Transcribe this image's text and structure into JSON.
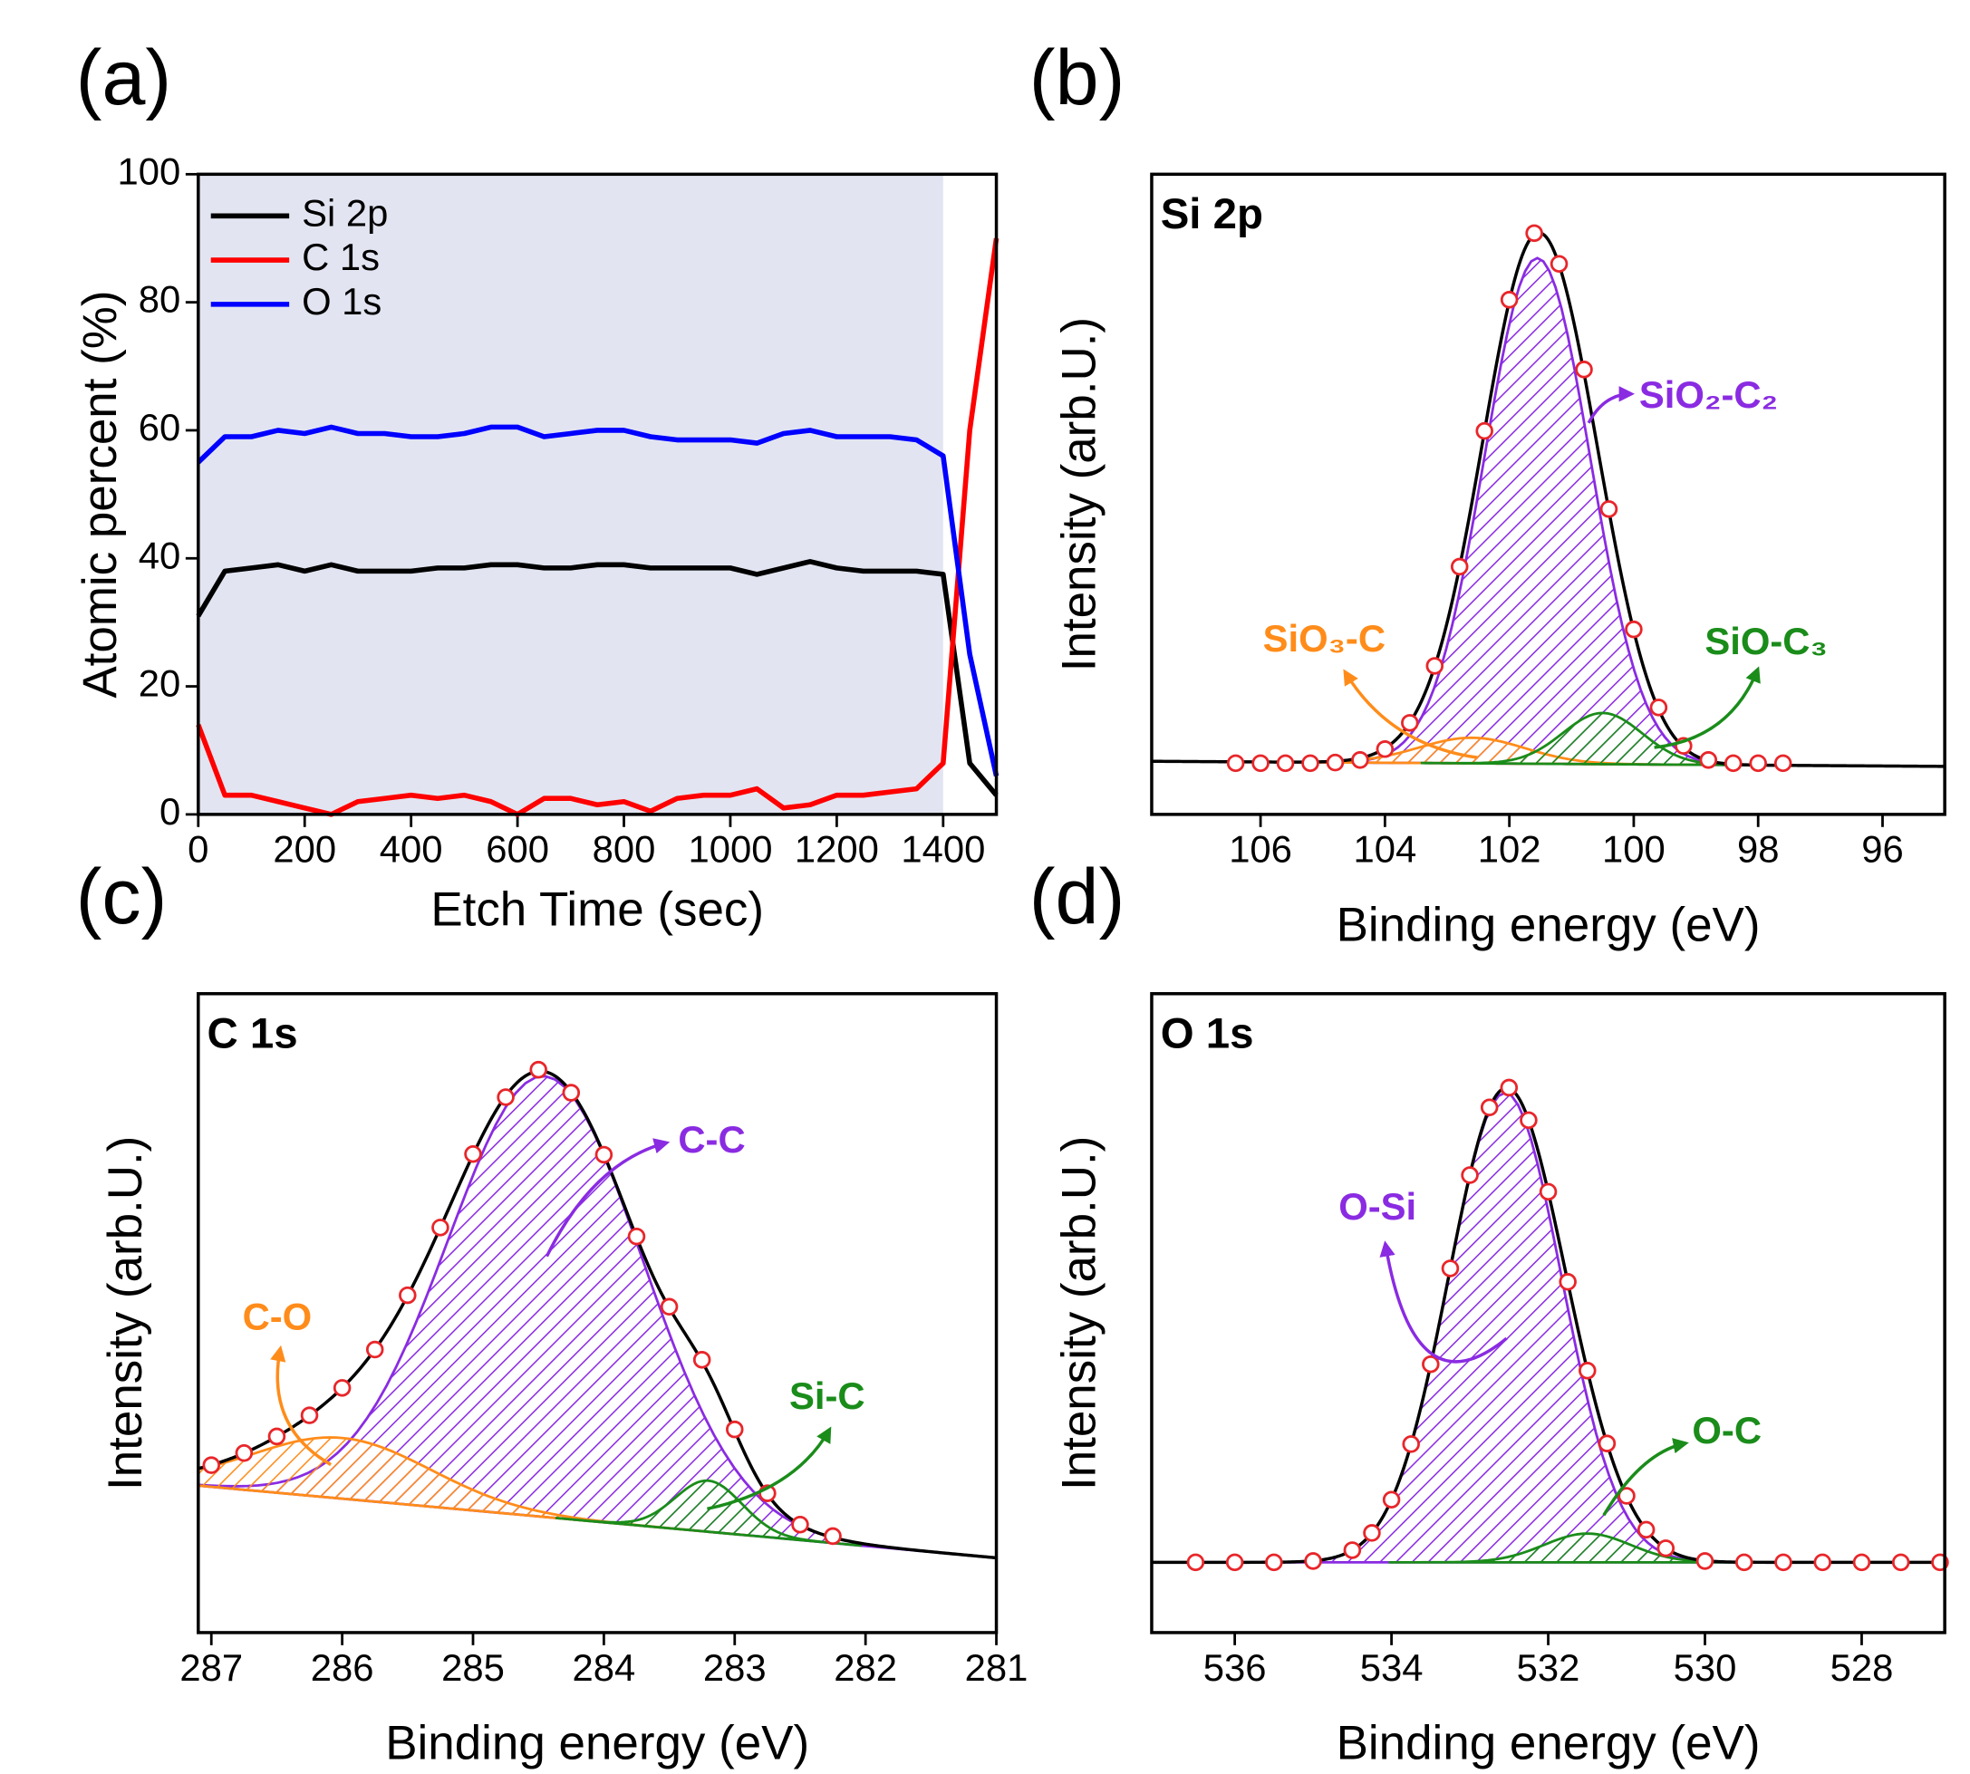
{
  "chart_data": [
    {
      "type": "line",
      "label": "(a)",
      "xlabel": "Etch Time (sec)",
      "ylabel": "Atomic percent (%)",
      "xlim": [
        0,
        1500
      ],
      "ylim": [
        0,
        100
      ],
      "xticks": [
        0,
        200,
        400,
        600,
        800,
        1000,
        1200,
        1400
      ],
      "yticks": [
        0,
        20,
        40,
        60,
        80,
        100
      ],
      "shaded_range": [
        0,
        1400
      ],
      "shade_color": "#e2e5f1",
      "legend": "upper left",
      "x": [
        0,
        50,
        100,
        150,
        200,
        250,
        300,
        350,
        400,
        450,
        500,
        550,
        600,
        650,
        700,
        750,
        800,
        850,
        900,
        950,
        1000,
        1050,
        1100,
        1150,
        1200,
        1250,
        1300,
        1350,
        1400,
        1450,
        1500
      ],
      "series": [
        {
          "name": "Si 2p",
          "color": "#000000",
          "values": [
            31,
            38,
            38.5,
            39,
            38,
            39,
            38,
            38,
            38,
            38.5,
            38.5,
            39,
            39,
            38.5,
            38.5,
            39,
            39,
            38.5,
            38.5,
            38.5,
            38.5,
            37.5,
            38.5,
            39.5,
            38.5,
            38,
            38,
            38,
            37.5,
            8,
            3
          ]
        },
        {
          "name": "C 1s",
          "color": "#ff0000",
          "values": [
            14,
            3,
            3,
            2,
            1,
            0,
            2,
            2.5,
            3,
            2.5,
            3,
            2,
            0,
            2.5,
            2.5,
            1.5,
            2,
            0.5,
            2.5,
            3,
            3,
            4,
            1,
            1.5,
            3,
            3,
            3.5,
            4,
            8,
            60,
            90
          ]
        },
        {
          "name": "O 1s",
          "color": "#0000ff",
          "values": [
            55,
            59,
            59,
            60,
            59.5,
            60.5,
            59.5,
            59.5,
            59,
            59,
            59.5,
            60.5,
            60.5,
            59,
            59.5,
            60,
            60,
            59,
            58.5,
            58.5,
            58.5,
            58,
            59.5,
            60,
            59,
            59,
            59,
            58.5,
            56,
            25,
            6
          ]
        }
      ]
    },
    {
      "type": "spectrum",
      "label": "(b)",
      "title": "Si 2p",
      "xlabel": "Binding energy (eV)",
      "ylabel": "Intensity (arb.U.)",
      "xlim": [
        107.75,
        95
      ],
      "ylim": [
        0,
        100
      ],
      "xticks": [
        106,
        104,
        102,
        100,
        98,
        96
      ],
      "baseline": [
        8.3,
        7.5
      ],
      "envelope_color": "#000000",
      "peaks": [
        {
          "name": "SiO₂-C₂",
          "color": "#8a2be2",
          "center": 101.55,
          "height": 79,
          "fwhm": 2.0
        },
        {
          "name": "SiO₃-C",
          "color": "#ff8c1a",
          "center": 102.6,
          "height": 4,
          "fwhm": 2.0
        },
        {
          "name": "SiO-C₃",
          "color": "#1a8c1a",
          "center": 100.5,
          "height": 8,
          "fwhm": 1.5
        }
      ],
      "points": {
        "color": "#e8262a",
        "x": [
          106.4,
          106.0,
          105.6,
          105.2,
          104.8,
          104.4,
          104.0,
          103.6,
          103.2,
          102.8,
          102.4,
          102.0,
          101.6,
          101.2,
          100.8,
          100.4,
          100.0,
          99.6,
          99.2,
          98.8,
          98.4,
          98.0,
          97.6
        ],
        "values": [
          8,
          8,
          8,
          8,
          8.1,
          8.5,
          10.2,
          14.3,
          23.2,
          38.7,
          59.9,
          80.4,
          90.8,
          86,
          69.5,
          47.7,
          28.9,
          16.7,
          10.7,
          8.5,
          8,
          8,
          8
        ]
      }
    },
    {
      "type": "spectrum",
      "label": "(c)",
      "title": "C 1s",
      "xlabel": "Binding energy (eV)",
      "ylabel": "Intensity (arb.U.)",
      "xlim": [
        287.1,
        281
      ],
      "ylim": [
        0,
        100
      ],
      "xticks": [
        287,
        286,
        285,
        284,
        283,
        282,
        281
      ],
      "baseline": [
        23,
        11.7
      ],
      "envelope_color": "#000000",
      "peaks": [
        {
          "name": "C-C",
          "color": "#8a2be2",
          "center": 284.45,
          "height": 69,
          "fwhm": 1.75
        },
        {
          "name": "C-O",
          "color": "#ff8c1a",
          "center": 286.0,
          "height": 9.5,
          "fwhm": 1.6
        },
        {
          "name": "Si-C",
          "color": "#1a8c1a",
          "center": 283.2,
          "height": 8,
          "fwhm": 0.6
        }
      ],
      "points": {
        "color": "#e8262a",
        "x": [
          287.0,
          286.75,
          286.5,
          286.25,
          286.0,
          285.75,
          285.5,
          285.25,
          285.0,
          284.75,
          284.5,
          284.25,
          284.0,
          283.75,
          283.5,
          283.25,
          283.0,
          282.75,
          282.5,
          282.25
        ],
        "values": [
          26.2,
          28.1,
          30.7,
          34.0,
          38.3,
          44.3,
          52.8,
          63.4,
          74.9,
          83.8,
          88.1,
          84.5,
          74.8,
          62.0,
          51.0,
          42.7,
          31.8,
          21.8,
          16.9,
          15.1
        ]
      }
    },
    {
      "type": "spectrum",
      "label": "(d)",
      "title": "O 1s",
      "xlabel": "Binding energy (eV)",
      "ylabel": "Intensity (arb.U.)",
      "xlim": [
        537.06,
        526.94
      ],
      "ylim": [
        0,
        100
      ],
      "xticks": [
        536,
        534,
        532,
        530,
        528
      ],
      "baseline": [
        11,
        11
      ],
      "envelope_color": "#000000",
      "peaks": [
        {
          "name": "O-Si",
          "color": "#8a2be2",
          "center": 532.55,
          "height": 73.5,
          "fwhm": 1.7
        },
        {
          "name": "O-C",
          "color": "#1a8c1a",
          "center": 531.5,
          "height": 4.5,
          "fwhm": 1.3
        }
      ],
      "points": {
        "color": "#e8262a",
        "x": [
          536.5,
          536,
          535.5,
          535,
          534.5,
          534.25,
          534,
          533.75,
          533.5,
          533.25,
          533,
          532.75,
          532.5,
          532.25,
          532,
          531.75,
          531.5,
          531.25,
          531,
          530.75,
          530.5,
          530,
          529.5,
          529,
          528.5,
          528,
          527.5,
          527
        ],
        "values": [
          11,
          11,
          11,
          11.2,
          12.9,
          15.6,
          20.8,
          29.5,
          42.0,
          57.0,
          71.6,
          82.2,
          85.3,
          80.2,
          69.0,
          54.9,
          41.0,
          29.6,
          21.4,
          16.1,
          13.2,
          11.2,
          11,
          11,
          11,
          11,
          11,
          11
        ]
      }
    }
  ]
}
